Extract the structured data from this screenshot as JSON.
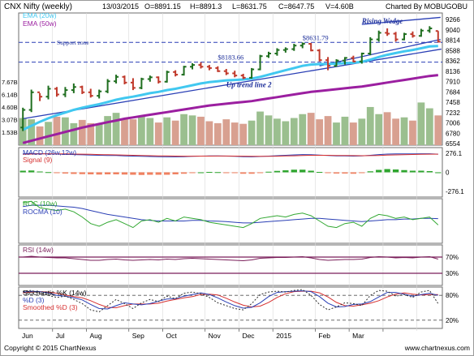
{
  "header": {
    "symbol": "CNX Nifty (weekly)",
    "date": "13/03/2015",
    "open": "O=8891.15",
    "high": "H=8891.3",
    "low": "L=8631.75",
    "close": "C=8647.75",
    "volume": "V=4.60B",
    "credit": "Charted By MOBUGOBU"
  },
  "footer": {
    "copyright": "Copyright © 2015 ChartNexus",
    "site": "www.chartnexus.com"
  },
  "colors": {
    "up": "#1f6e1f",
    "down": "#c0392b",
    "ema20": "#41c8f0",
    "ema50": "#9b1fa0",
    "trend": "#2a3fb5",
    "vol_up": "#9bbf8f",
    "vol_down": "#d8a090",
    "macd": "#2a3fb5",
    "signal": "#d63030",
    "roc": "#32a832",
    "rocma": "#2a3fb5",
    "rsi": "#7a1f5a",
    "stoch_k": "#303030",
    "stoch_d": "#2a3fb5",
    "stoch_sd": "#d63030"
  },
  "chart_data": {
    "type": "line",
    "x_labels": [
      "Jun",
      "Jul",
      "Aug",
      "Sep",
      "Oct",
      "Nov",
      "Dec",
      "2015",
      "Feb",
      "Mar"
    ],
    "price": {
      "legend": [
        "EMA (20w)",
        "EMA (50w)"
      ],
      "ylim": [
        6300,
        9300
      ],
      "right_ticks": [
        "9266",
        "9040",
        "8814",
        "8588",
        "8362",
        "8136",
        "7910",
        "7684",
        "7458",
        "7232",
        "7006",
        "6780",
        "6554"
      ],
      "volume_ticks": [
        "7.67B",
        "6.14B",
        "4.60B",
        "3.07B",
        "1.53B"
      ],
      "volume_ylim": [
        0,
        9.2
      ],
      "candles": [
        {
          "o": 6700,
          "h": 7150,
          "l": 6620,
          "c": 7100
        },
        {
          "o": 7100,
          "h": 7560,
          "l": 7050,
          "c": 7500
        },
        {
          "o": 7500,
          "h": 7480,
          "l": 7300,
          "c": 7400
        },
        {
          "o": 7400,
          "h": 7650,
          "l": 7340,
          "c": 7580
        },
        {
          "o": 7580,
          "h": 7620,
          "l": 7400,
          "c": 7450
        },
        {
          "o": 7450,
          "h": 7620,
          "l": 7390,
          "c": 7550
        },
        {
          "o": 7550,
          "h": 7700,
          "l": 7480,
          "c": 7620
        },
        {
          "o": 7620,
          "h": 7650,
          "l": 7460,
          "c": 7500
        },
        {
          "o": 7500,
          "h": 7580,
          "l": 7380,
          "c": 7420
        },
        {
          "o": 7420,
          "h": 7560,
          "l": 7360,
          "c": 7520
        },
        {
          "o": 7520,
          "h": 7800,
          "l": 7480,
          "c": 7750
        },
        {
          "o": 7750,
          "h": 7900,
          "l": 7700,
          "c": 7850
        },
        {
          "o": 7850,
          "h": 7880,
          "l": 7680,
          "c": 7720
        },
        {
          "o": 7720,
          "h": 7820,
          "l": 7550,
          "c": 7600
        },
        {
          "o": 7600,
          "h": 7830,
          "l": 7570,
          "c": 7800
        },
        {
          "o": 7800,
          "h": 7880,
          "l": 7740,
          "c": 7840
        },
        {
          "o": 7840,
          "h": 7860,
          "l": 7700,
          "c": 7740
        },
        {
          "o": 7740,
          "h": 7990,
          "l": 7720,
          "c": 7960
        },
        {
          "o": 7960,
          "h": 8000,
          "l": 7860,
          "c": 7900
        },
        {
          "o": 7900,
          "h": 8100,
          "l": 7880,
          "c": 8080
        },
        {
          "o": 8080,
          "h": 8160,
          "l": 8020,
          "c": 8120
        },
        {
          "o": 8120,
          "h": 8180,
          "l": 8040,
          "c": 8080
        },
        {
          "o": 8080,
          "h": 8120,
          "l": 8000,
          "c": 8050
        },
        {
          "o": 8050,
          "h": 8090,
          "l": 7960,
          "c": 7980
        },
        {
          "o": 7980,
          "h": 8030,
          "l": 7890,
          "c": 7930
        },
        {
          "o": 7930,
          "h": 7990,
          "l": 7840,
          "c": 7880
        },
        {
          "o": 7880,
          "h": 7920,
          "l": 7800,
          "c": 7830
        },
        {
          "o": 7830,
          "h": 8050,
          "l": 7810,
          "c": 8020
        },
        {
          "o": 8020,
          "h": 8350,
          "l": 8000,
          "c": 8320
        },
        {
          "o": 8320,
          "h": 8420,
          "l": 8280,
          "c": 8380
        },
        {
          "o": 8380,
          "h": 8500,
          "l": 8330,
          "c": 8460
        },
        {
          "o": 8460,
          "h": 8520,
          "l": 8400,
          "c": 8480
        },
        {
          "o": 8480,
          "h": 8600,
          "l": 8440,
          "c": 8560
        },
        {
          "o": 8560,
          "h": 8632,
          "l": 8500,
          "c": 8600
        },
        {
          "o": 8600,
          "h": 8620,
          "l": 8430,
          "c": 8450
        },
        {
          "o": 8450,
          "h": 8480,
          "l": 8200,
          "c": 8230
        },
        {
          "o": 8230,
          "h": 8300,
          "l": 8000,
          "c": 8100
        },
        {
          "o": 8100,
          "h": 8250,
          "l": 8080,
          "c": 8220
        },
        {
          "o": 8220,
          "h": 8300,
          "l": 8130,
          "c": 8280
        },
        {
          "o": 8280,
          "h": 8330,
          "l": 8180,
          "c": 8200
        },
        {
          "o": 8200,
          "h": 8400,
          "l": 8150,
          "c": 8380
        },
        {
          "o": 8380,
          "h": 8750,
          "l": 8340,
          "c": 8700
        },
        {
          "o": 8700,
          "h": 8900,
          "l": 8650,
          "c": 8850
        },
        {
          "o": 8850,
          "h": 8950,
          "l": 8780,
          "c": 8830
        },
        {
          "o": 8830,
          "h": 8870,
          "l": 8650,
          "c": 8700
        },
        {
          "o": 8700,
          "h": 8850,
          "l": 8680,
          "c": 8820
        },
        {
          "o": 8820,
          "h": 8880,
          "l": 8740,
          "c": 8780
        },
        {
          "o": 8780,
          "h": 8940,
          "l": 8760,
          "c": 8900
        },
        {
          "o": 8900,
          "h": 9000,
          "l": 8850,
          "c": 8950
        },
        {
          "o": 8891,
          "h": 8891,
          "l": 8632,
          "c": 8648
        }
      ],
      "ema20": [
        6650,
        6740,
        6830,
        6910,
        6980,
        7040,
        7100,
        7150,
        7190,
        7230,
        7280,
        7330,
        7370,
        7400,
        7440,
        7480,
        7510,
        7550,
        7580,
        7620,
        7660,
        7700,
        7730,
        7750,
        7770,
        7780,
        7790,
        7810,
        7850,
        7900,
        7950,
        8000,
        8050,
        8100,
        8130,
        8140,
        8140,
        8150,
        8160,
        8170,
        8190,
        8240,
        8300,
        8350,
        8390,
        8430,
        8460,
        8500,
        8540,
        8550
      ],
      "ema50": [
        6350,
        6400,
        6450,
        6500,
        6550,
        6600,
        6650,
        6700,
        6740,
        6780,
        6820,
        6860,
        6900,
        6930,
        6960,
        6990,
        7020,
        7050,
        7080,
        7110,
        7140,
        7170,
        7200,
        7220,
        7240,
        7260,
        7280,
        7300,
        7330,
        7360,
        7390,
        7420,
        7450,
        7480,
        7510,
        7530,
        7550,
        7570,
        7590,
        7610,
        7630,
        7660,
        7690,
        7720,
        7750,
        7780,
        7810,
        7840,
        7870,
        7890
      ],
      "volume": [
        4.2,
        4.0,
        2.9,
        3.6,
        4.4,
        4.3,
        3.4,
        3.9,
        3.4,
        3.2,
        4.5,
        5.0,
        4.0,
        4.0,
        4.4,
        4.2,
        3.5,
        4.3,
        3.8,
        4.8,
        4.6,
        4.4,
        3.7,
        3.4,
        4.0,
        3.5,
        3.3,
        3.8,
        5.2,
        4.6,
        4.1,
        3.7,
        4.2,
        4.8,
        5.0,
        4.0,
        4.5,
        3.5,
        4.4,
        3.5,
        4.1,
        5.9,
        4.8,
        5.1,
        4.1,
        4.3,
        3.8,
        6.6,
        5.7,
        4.6
      ],
      "annotations": [
        {
          "text": "$8631.79",
          "x": 33,
          "y": 8632
        },
        {
          "text": "$8183.66",
          "x": 23,
          "y": 8184
        },
        {
          "text": "Support zone",
          "x": 4,
          "y": 8530
        },
        {
          "text": "Rising Wedge",
          "x": 40,
          "y": 9060
        },
        {
          "text": "Up trend line 2",
          "x": 24,
          "y": 7620
        }
      ]
    },
    "macd": {
      "legend": [
        "MACD (26w,12w)",
        "Signal (9)"
      ],
      "ticks": [
        "276.1",
        "0",
        "-276.1"
      ],
      "ylim": [
        -360,
        360
      ],
      "macd": [
        270,
        275,
        272,
        270,
        266,
        262,
        258,
        255,
        252,
        248,
        246,
        244,
        240,
        236,
        232,
        230,
        228,
        226,
        226,
        228,
        232,
        236,
        238,
        238,
        236,
        232,
        228,
        226,
        230,
        236,
        242,
        248,
        254,
        258,
        256,
        250,
        244,
        240,
        238,
        236,
        238,
        248,
        258,
        266,
        268,
        268,
        268,
        270,
        270,
        264
      ],
      "signal": [
        262,
        266,
        268,
        269,
        269,
        268,
        266,
        264,
        262,
        259,
        256,
        254,
        251,
        248,
        245,
        242,
        240,
        238,
        236,
        235,
        235,
        236,
        236,
        237,
        237,
        236,
        235,
        233,
        232,
        233,
        235,
        238,
        241,
        245,
        248,
        248,
        248,
        246,
        244,
        243,
        242,
        243,
        246,
        250,
        254,
        257,
        260,
        262,
        264,
        264
      ],
      "hist": [
        8,
        9,
        4,
        1,
        -3,
        -6,
        -8,
        -9,
        -10,
        -11,
        -10,
        -10,
        -11,
        -12,
        -13,
        -12,
        -12,
        -12,
        -10,
        -7,
        -3,
        0,
        2,
        1,
        -1,
        -4,
        -7,
        -7,
        -2,
        3,
        7,
        10,
        13,
        13,
        8,
        2,
        -4,
        -6,
        -6,
        -7,
        -4,
        5,
        12,
        16,
        14,
        11,
        8,
        8,
        6,
        0
      ]
    },
    "roc": {
      "legend": [
        "ROC (10w)",
        "ROCMA (10)"
      ],
      "ylim": [
        -12,
        22
      ],
      "roc": [
        19,
        20,
        15,
        14,
        13,
        14,
        12,
        8,
        3,
        1,
        4,
        6,
        3,
        0,
        5,
        6,
        4,
        7,
        5,
        8,
        7,
        6,
        4,
        3,
        2,
        1,
        0,
        3,
        7,
        8,
        9,
        8,
        10,
        11,
        9,
        5,
        1,
        0,
        3,
        4,
        1,
        7,
        10,
        9,
        7,
        8,
        6,
        7,
        8,
        2
      ],
      "rocma": [
        16,
        17,
        17,
        17,
        16.5,
        16,
        15.5,
        14.5,
        13,
        11.5,
        10,
        9,
        8,
        7,
        6,
        5.5,
        5,
        5,
        5,
        5,
        5.5,
        5.5,
        5,
        4.8,
        4.5,
        4,
        3.5,
        3.5,
        4,
        4.5,
        5,
        5.5,
        6,
        6.5,
        7,
        7,
        6.5,
        6,
        5.5,
        5,
        4.5,
        5,
        5.5,
        6,
        6,
        6.5,
        6.5,
        7,
        7,
        6.8
      ]
    },
    "rsi": {
      "legend": [
        "RSI (14w)"
      ],
      "ticks": [
        "70%",
        "30%"
      ],
      "ylim": [
        0,
        100
      ],
      "rsi": [
        70,
        72,
        70,
        69,
        68,
        68,
        66,
        64,
        62,
        62,
        64,
        65,
        63,
        62,
        63,
        64,
        63,
        65,
        64,
        66,
        67,
        66,
        65,
        64,
        63,
        62,
        61,
        63,
        67,
        68,
        69,
        69,
        70,
        71,
        68,
        64,
        62,
        63,
        64,
        64,
        65,
        69,
        71,
        70,
        68,
        69,
        68,
        70,
        71,
        65
      ]
    },
    "stochastic": {
      "legend": [
        "Stochastic %K (14w)",
        "%D (3)",
        "Smoothed %D (3)"
      ],
      "ticks": [
        "80%",
        "20%"
      ],
      "ylim": [
        0,
        100
      ],
      "k": [
        90,
        92,
        85,
        80,
        75,
        78,
        70,
        60,
        45,
        40,
        55,
        70,
        60,
        48,
        62,
        70,
        65,
        78,
        72,
        85,
        88,
        84,
        75,
        62,
        55,
        48,
        45,
        60,
        82,
        88,
        90,
        88,
        92,
        94,
        80,
        58,
        45,
        52,
        62,
        60,
        55,
        80,
        92,
        90,
        78,
        82,
        75,
        88,
        92,
        60
      ],
      "d": [
        88,
        90,
        89,
        86,
        80,
        78,
        74,
        69,
        58,
        48,
        47,
        55,
        62,
        59,
        57,
        60,
        66,
        71,
        72,
        78,
        82,
        86,
        82,
        74,
        64,
        55,
        49,
        51,
        62,
        77,
        87,
        89,
        90,
        91,
        89,
        77,
        61,
        52,
        53,
        58,
        59,
        65,
        76,
        87,
        87,
        83,
        78,
        82,
        85,
        80
      ],
      "sd": [
        86,
        88,
        89,
        88,
        85,
        81,
        77,
        74,
        67,
        58,
        51,
        50,
        55,
        59,
        59,
        59,
        61,
        66,
        70,
        74,
        77,
        82,
        83,
        81,
        73,
        64,
        56,
        52,
        54,
        63,
        75,
        84,
        89,
        90,
        90,
        86,
        76,
        63,
        55,
        54,
        57,
        61,
        67,
        76,
        83,
        86,
        83,
        81,
        82,
        82
      ]
    }
  }
}
